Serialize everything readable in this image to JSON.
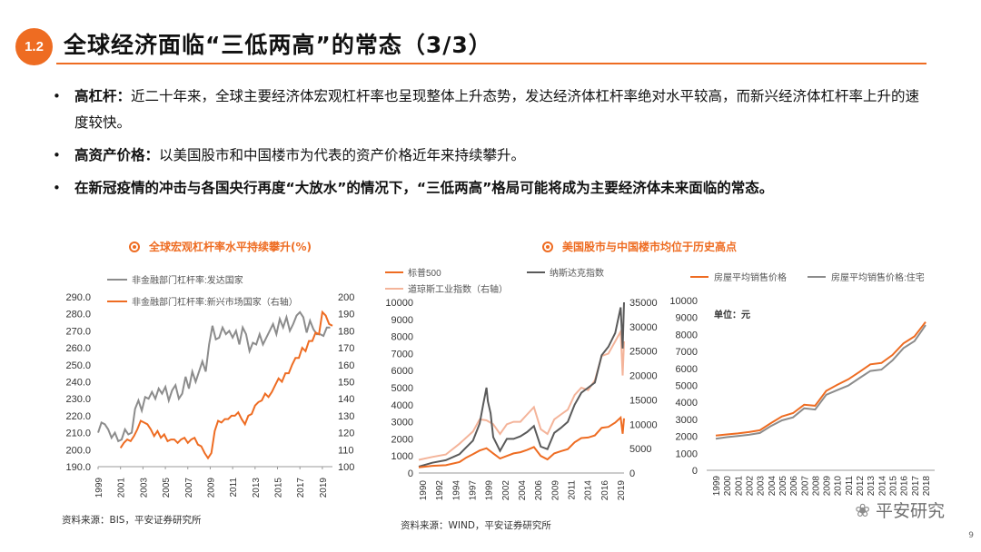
{
  "header": {
    "section_number": "1.2",
    "title": "全球经济面临“三低两高”的常态（3/3）"
  },
  "bullets": [
    {
      "term": "高杠杆：",
      "text": "近二十年来，全球主要经济体宏观杠杆率也呈现整体上升态势，发达经济体杠杆率绝对水平较高，而新兴经济体杠杆率上升的速度较快。"
    },
    {
      "term": "高资产价格：",
      "text": "以美国股市和中国楼市为代表的资产价格近年来持续攀升。"
    },
    {
      "term": "",
      "text": "在新冠疫情的冲击与各国央行再度“大放水”的情况下，“三低两高”格局可能将成为主要经济体未来面临的常态。"
    }
  ],
  "chart_titles": {
    "left": "全球宏观杠杆率水平持续攀升(%)",
    "right": "美国股市与中国楼市均位于历史高点"
  },
  "sources": {
    "left": "资料来源：BIS，平安证券研究所",
    "right": "资料来源：WIND，平安证券研究所"
  },
  "watermark": "平安研究",
  "page_number": "9",
  "colors": {
    "accent": "#ee6c22",
    "gray": "#8c8c8c",
    "salmon": "#f4b49a",
    "dark": "#5a5a5a"
  },
  "chart_data": [
    {
      "type": "line",
      "title": "全球宏观杠杆率水平持续攀升(%)",
      "x_ticks": [
        "1999",
        "2001",
        "2003",
        "2005",
        "2007",
        "2009",
        "2011",
        "2013",
        "2015",
        "2017",
        "2019"
      ],
      "x_range": [
        1999,
        2019.9
      ],
      "ylim": [
        190,
        290
      ],
      "y_ticks": [
        "190.0",
        "200.0",
        "210.0",
        "220.0",
        "230.0",
        "240.0",
        "250.0",
        "260.0",
        "270.0",
        "280.0",
        "290.0"
      ],
      "y2lim": [
        100,
        200
      ],
      "y2_ticks": [
        "100",
        "110",
        "120",
        "130",
        "140",
        "150",
        "160",
        "170",
        "180",
        "190",
        "200"
      ],
      "series": [
        {
          "name": "非金融部门杠杆率:发达国家",
          "color": "#8c8c8c",
          "axis": "left",
          "x": [
            1999,
            1999.3,
            1999.6,
            1999.9,
            2000.2,
            2000.5,
            2000.8,
            2001.1,
            2001.4,
            2001.7,
            2002.0,
            2002.3,
            2002.6,
            2002.9,
            2003.2,
            2003.5,
            2003.8,
            2004.1,
            2004.4,
            2004.7,
            2005.0,
            2005.3,
            2005.6,
            2005.9,
            2006.2,
            2006.5,
            2006.8,
            2007.1,
            2007.4,
            2007.7,
            2008.0,
            2008.3,
            2008.6,
            2008.9,
            2009.2,
            2009.5,
            2009.8,
            2010.1,
            2010.4,
            2010.7,
            2011.0,
            2011.3,
            2011.6,
            2011.9,
            2012.2,
            2012.5,
            2012.8,
            2013.1,
            2013.4,
            2013.7,
            2014.0,
            2014.3,
            2014.6,
            2014.9,
            2015.2,
            2015.5,
            2015.8,
            2016.1,
            2016.4,
            2016.7,
            2017.0,
            2017.3,
            2017.6,
            2017.9,
            2018.2,
            2018.5,
            2018.8,
            2019.1,
            2019.4,
            2019.7
          ],
          "values": [
            210,
            216,
            215,
            212,
            207,
            210,
            205,
            206,
            212,
            209,
            210,
            224,
            229,
            223,
            231,
            230,
            234,
            230,
            236,
            233,
            237,
            229,
            235,
            238,
            230,
            233,
            243,
            236,
            246,
            240,
            246,
            252,
            246,
            262,
            273,
            265,
            266,
            272,
            268,
            270,
            266,
            270,
            262,
            272,
            268,
            258,
            263,
            262,
            268,
            262,
            266,
            270,
            274,
            268,
            277,
            272,
            278,
            270,
            274,
            279,
            281,
            278,
            269,
            276,
            271,
            268,
            268,
            267,
            272,
            272
          ]
        },
        {
          "name": "非金融部门杠杆率:新兴市场国家（右轴）",
          "color": "#ee6c22",
          "axis": "right",
          "x": [
            2001.0,
            2001.3,
            2001.6,
            2001.9,
            2002.2,
            2002.5,
            2002.8,
            2003.1,
            2003.4,
            2003.7,
            2004.0,
            2004.3,
            2004.6,
            2004.9,
            2005.2,
            2005.5,
            2005.8,
            2006.1,
            2006.4,
            2006.7,
            2007.0,
            2007.3,
            2007.6,
            2007.9,
            2008.2,
            2008.5,
            2008.8,
            2009.1,
            2009.4,
            2009.7,
            2010.0,
            2010.3,
            2010.6,
            2010.9,
            2011.2,
            2011.5,
            2011.8,
            2012.1,
            2012.4,
            2012.7,
            2013.0,
            2013.3,
            2013.6,
            2013.9,
            2014.2,
            2014.5,
            2014.8,
            2015.1,
            2015.4,
            2015.7,
            2016.0,
            2016.3,
            2016.6,
            2016.9,
            2017.2,
            2017.5,
            2017.8,
            2018.1,
            2018.4,
            2018.7,
            2019.0,
            2019.3,
            2019.6,
            2019.9
          ],
          "values": [
            111,
            114,
            116,
            115,
            118,
            122,
            127,
            126,
            125,
            122,
            118,
            121,
            117,
            119,
            115,
            116,
            116,
            114,
            116,
            117,
            114,
            116,
            117,
            113,
            112,
            108,
            105,
            108,
            121,
            127,
            126,
            128,
            128,
            130,
            130,
            132,
            128,
            125,
            130,
            131,
            136,
            138,
            139,
            143,
            141,
            144,
            148,
            152,
            150,
            155,
            155,
            160,
            164,
            164,
            170,
            168,
            174,
            174,
            179,
            178,
            191,
            189,
            184,
            183
          ]
        }
      ]
    },
    {
      "type": "line",
      "title": "美国股市与中国楼市均位于历史高点",
      "x_ticks": [
        "1990",
        "1992",
        "1994",
        "1997",
        "1999",
        "2002",
        "2004",
        "2006",
        "2009",
        "2011",
        "2014",
        "2016",
        "2019"
      ],
      "x_range": [
        1990,
        2020.3
      ],
      "ylim": [
        0,
        10000
      ],
      "y_ticks": [
        "0",
        "1000",
        "2000",
        "3000",
        "4000",
        "5000",
        "6000",
        "7000",
        "8000",
        "9000",
        "10000"
      ],
      "y2lim": [
        0,
        35000
      ],
      "y2_ticks": [
        "0",
        "5000",
        "10000",
        "15000",
        "20000",
        "25000",
        "30000",
        "35000"
      ],
      "series": [
        {
          "name": "标普500",
          "color": "#ee6c22",
          "axis": "left",
          "x": [
            1990,
            1992,
            1994,
            1996,
            1997,
            1998,
            1999,
            2000,
            2001,
            2002,
            2003,
            2004,
            2005,
            2006,
            2007,
            2008,
            2009,
            2010,
            2011,
            2012,
            2013,
            2014,
            2015,
            2016,
            2017,
            2018,
            2019,
            2019.8,
            2020.1,
            2020.3
          ],
          "values": [
            330,
            420,
            460,
            640,
            900,
            1100,
            1320,
            1450,
            1150,
            850,
            1000,
            1150,
            1220,
            1350,
            1520,
            1000,
            800,
            1150,
            1280,
            1400,
            1800,
            2050,
            2080,
            2200,
            2650,
            2700,
            2950,
            3250,
            2300,
            3200
          ]
        },
        {
          "name": "纳斯达克指数",
          "color": "#5a5a5a",
          "axis": "left",
          "x": [
            1990,
            1992,
            1994,
            1996,
            1997,
            1998,
            1999,
            1999.5,
            2000.0,
            2000.2,
            2000.6,
            2001,
            2002,
            2003,
            2004,
            2005,
            2006,
            2007,
            2008,
            2009,
            2010,
            2011,
            2012,
            2013,
            2014,
            2015,
            2016,
            2017,
            2018,
            2019,
            2019.8,
            2020.1,
            2020.3
          ],
          "values": [
            380,
            600,
            750,
            1100,
            1500,
            1900,
            2900,
            4000,
            5000,
            4200,
            3500,
            2100,
            1300,
            2000,
            2000,
            2150,
            2400,
            2750,
            1550,
            1400,
            2350,
            2650,
            3000,
            4000,
            4700,
            5000,
            5300,
            6900,
            7400,
            8200,
            9700,
            7300,
            10000
          ]
        },
        {
          "name": "道琼斯工业指数（右轴）",
          "color": "#f4b49a",
          "axis": "right",
          "x": [
            1990,
            1992,
            1994,
            1996,
            1998,
            1999,
            2000,
            2001,
            2002,
            2003,
            2004,
            2005,
            2006,
            2007,
            2008,
            2009,
            2010,
            2011,
            2012,
            2013,
            2014,
            2015,
            2016,
            2017,
            2018,
            2019,
            2019.8,
            2020.1,
            2020.3
          ],
          "values": [
            2700,
            3300,
            3800,
            6000,
            8500,
            11000,
            10800,
            10000,
            8000,
            10000,
            10500,
            10500,
            12000,
            13500,
            9000,
            8000,
            11000,
            12000,
            13000,
            16000,
            17500,
            17000,
            19000,
            24000,
            24500,
            27000,
            29000,
            20000,
            27000
          ]
        }
      ]
    },
    {
      "type": "line",
      "title": "",
      "annotation": "单位：元",
      "x_ticks": [
        "1999",
        "2000",
        "2001",
        "2002",
        "2003",
        "2004",
        "2005",
        "2006",
        "2007",
        "2008",
        "2009",
        "2010",
        "2011",
        "2012",
        "2013",
        "2014",
        "2015",
        "2016",
        "2017",
        "2018"
      ],
      "ylim": [
        0,
        10000
      ],
      "y_ticks": [
        "0",
        "1000",
        "2000",
        "3000",
        "4000",
        "5000",
        "6000",
        "7000",
        "8000",
        "9000",
        "10000"
      ],
      "series": [
        {
          "name": "房屋平均销售价格",
          "color": "#ee6c22",
          "values": [
            2050,
            2110,
            2170,
            2250,
            2360,
            2780,
            3170,
            3370,
            3860,
            3800,
            4680,
            5030,
            5360,
            5790,
            6240,
            6320,
            6790,
            7480,
            7890,
            8740
          ]
        },
        {
          "name": "房屋平均销售价格:住宅",
          "color": "#8c8c8c",
          "values": [
            1860,
            1950,
            2020,
            2090,
            2200,
            2610,
            2940,
            3120,
            3650,
            3580,
            4450,
            4720,
            4990,
            5430,
            5850,
            5930,
            6470,
            7200,
            7610,
            8550
          ]
        }
      ]
    }
  ]
}
